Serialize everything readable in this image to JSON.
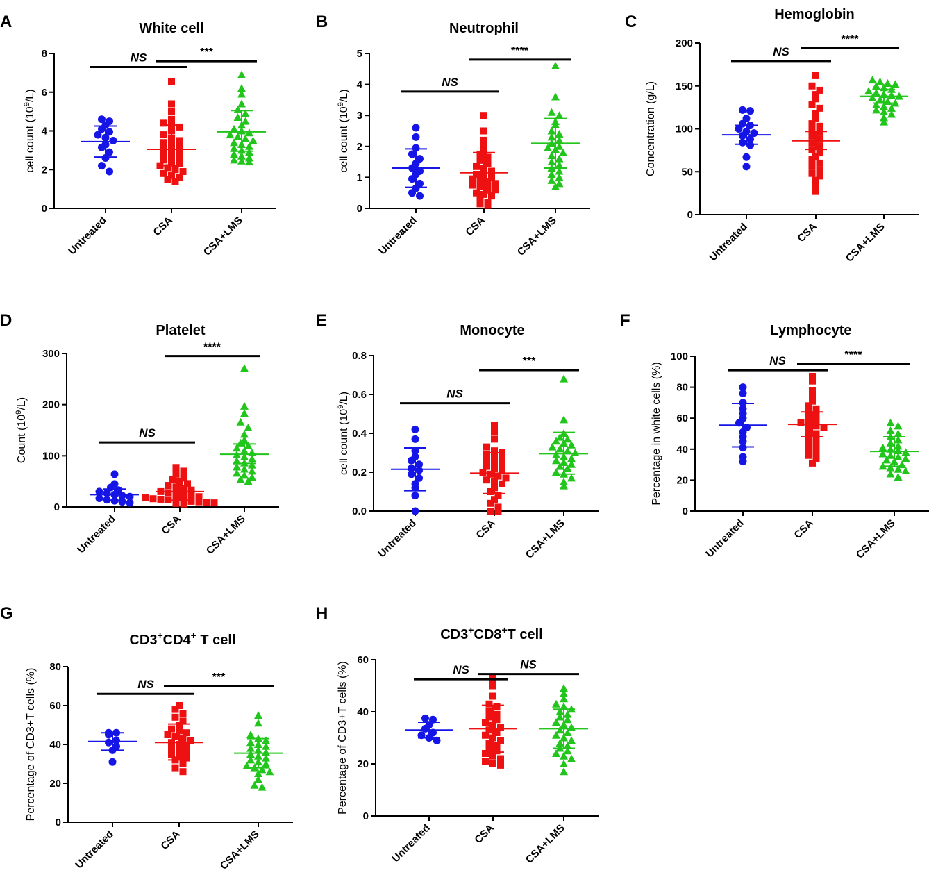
{
  "colors": {
    "untreated": "#1515e6",
    "csa": "#ee1111",
    "csa_lms": "#22c51c",
    "axis": "#000000"
  },
  "chart_data": [
    {
      "letter": "A",
      "type": "scatter",
      "title": "White cell",
      "ylabel": "cell count (10⁹/L)",
      "ylim": [
        0,
        8
      ],
      "yticks": [
        0,
        2,
        4,
        6,
        8
      ],
      "categories": [
        "Untreated",
        "CSA",
        "CSA+LMS"
      ],
      "series": [
        {
          "name": "Untreated",
          "marker": "circle",
          "mean": 3.45,
          "sd_low": 2.65,
          "sd_high": 4.25,
          "values": [
            4.6,
            4.5,
            4.3,
            4.1,
            3.95,
            3.8,
            3.65,
            3.5,
            3.3,
            3.15,
            2.9,
            2.6,
            2.2,
            1.9
          ]
        },
        {
          "name": "CSA",
          "marker": "square",
          "mean": 3.05,
          "sd_low": 2.2,
          "sd_high": 4.3,
          "values": [
            6.55,
            5.4,
            5.0,
            4.6,
            4.4,
            4.3,
            4.2,
            4.0,
            3.8,
            3.6,
            3.5,
            3.4,
            3.3,
            3.2,
            3.1,
            3.0,
            2.9,
            2.8,
            2.7,
            2.6,
            2.5,
            2.4,
            2.3,
            2.2,
            2.1,
            2.0,
            1.9,
            1.8,
            1.7,
            1.6,
            1.5,
            1.4
          ]
        },
        {
          "name": "CSA+LMS",
          "marker": "triangle",
          "mean": 3.95,
          "sd_low": 2.95,
          "sd_high": 5.05,
          "values": [
            6.9,
            6.2,
            5.9,
            5.4,
            5.1,
            4.9,
            4.7,
            4.5,
            4.3,
            4.1,
            4.0,
            3.9,
            3.8,
            3.7,
            3.6,
            3.5,
            3.4,
            3.3,
            3.2,
            3.1,
            3.0,
            2.9,
            2.8,
            2.7,
            2.6,
            2.5,
            2.45,
            2.4
          ]
        }
      ],
      "comparisons": [
        {
          "from": 0,
          "to": 1,
          "label": "NS",
          "y": 7.3
        },
        {
          "from": 1,
          "to": 2,
          "label": "***",
          "y": 7.6
        }
      ]
    },
    {
      "letter": "B",
      "type": "scatter",
      "title": "Neutrophil",
      "ylabel": "cell count (10⁹/L)",
      "ylim": [
        0,
        5
      ],
      "yticks": [
        0,
        1,
        2,
        3,
        4,
        5
      ],
      "categories": [
        "Untreated",
        "CSA",
        "CSA+LMS"
      ],
      "series": [
        {
          "name": "Untreated",
          "marker": "circle",
          "mean": 1.3,
          "sd_low": 0.68,
          "sd_high": 1.92,
          "values": [
            2.6,
            2.3,
            1.95,
            1.75,
            1.6,
            1.45,
            1.3,
            1.2,
            1.1,
            0.95,
            0.8,
            0.65,
            0.5,
            0.4
          ]
        },
        {
          "name": "CSA",
          "marker": "square",
          "mean": 1.15,
          "sd_low": 0.5,
          "sd_high": 1.8,
          "values": [
            3.0,
            2.5,
            2.2,
            2.0,
            1.85,
            1.75,
            1.65,
            1.55,
            1.45,
            1.35,
            1.3,
            1.2,
            1.1,
            1.05,
            1.0,
            0.95,
            0.9,
            0.85,
            0.8,
            0.75,
            0.7,
            0.65,
            0.6,
            0.5,
            0.45,
            0.4,
            0.3,
            0.2,
            0.15,
            0.1
          ]
        },
        {
          "name": "CSA+LMS",
          "marker": "triangle",
          "mean": 2.1,
          "sd_low": 1.3,
          "sd_high": 2.9,
          "values": [
            4.6,
            3.6,
            3.1,
            3.0,
            2.8,
            2.7,
            2.5,
            2.4,
            2.3,
            2.2,
            2.1,
            2.0,
            1.95,
            1.9,
            1.8,
            1.7,
            1.6,
            1.5,
            1.4,
            1.3,
            1.2,
            1.1,
            1.0,
            0.9,
            0.8,
            0.7
          ]
        }
      ],
      "comparisons": [
        {
          "from": 0,
          "to": 1,
          "label": "NS",
          "y": 3.77
        },
        {
          "from": 1,
          "to": 2,
          "label": "****",
          "y": 4.8
        }
      ]
    },
    {
      "letter": "C",
      "type": "scatter",
      "title": "Hemoglobin",
      "ylabel": "Concentration (g/L)",
      "ylim": [
        0,
        200
      ],
      "yticks": [
        0,
        50,
        100,
        150,
        200
      ],
      "categories": [
        "Untreated",
        "CSA",
        "CSA+LMS"
      ],
      "series": [
        {
          "name": "Untreated",
          "marker": "circle",
          "mean": 93,
          "sd_low": 82,
          "sd_high": 104,
          "values": [
            122,
            121,
            112,
            106,
            104,
            100,
            97,
            95,
            92,
            88,
            84,
            81,
            67,
            56
          ]
        },
        {
          "name": "CSA",
          "marker": "square",
          "mean": 86,
          "sd_low": 76,
          "sd_high": 97,
          "values": [
            162,
            150,
            145,
            140,
            135,
            128,
            124,
            118,
            112,
            106,
            103,
            100,
            96,
            92,
            88,
            84,
            80,
            76,
            72,
            68,
            64,
            60,
            56,
            52,
            48,
            45,
            40,
            34,
            27
          ]
        },
        {
          "name": "CSA+LMS",
          "marker": "triangle",
          "mean": 138,
          "sd_low": 130,
          "sd_high": 146,
          "values": [
            157,
            155,
            153,
            152,
            150,
            148,
            146,
            144,
            142,
            140,
            139,
            138,
            136,
            134,
            132,
            130,
            128,
            126,
            124,
            122,
            120,
            117,
            113,
            108
          ]
        }
      ],
      "comparisons": [
        {
          "from": 0,
          "to": 1,
          "label": "NS",
          "y": 179
        },
        {
          "from": 1,
          "to": 2,
          "label": "****",
          "y": 194
        }
      ]
    },
    {
      "letter": "D",
      "type": "scatter",
      "title": "Platelet",
      "ylabel": "Count (10⁹/L)",
      "ylim": [
        0,
        300
      ],
      "yticks": [
        0,
        100,
        200,
        300
      ],
      "categories": [
        "Untreated",
        "CSA",
        "CSA+LMS"
      ],
      "series": [
        {
          "name": "Untreated",
          "marker": "circle",
          "mean": 24,
          "sd_low": 13,
          "sd_high": 35,
          "values": [
            64,
            45,
            38,
            33,
            30,
            27,
            24,
            22,
            20,
            17,
            14,
            12,
            10,
            8
          ]
        },
        {
          "name": "CSA",
          "marker": "square",
          "mean": 30,
          "sd_low": 13,
          "sd_high": 51,
          "values": [
            77,
            70,
            64,
            58,
            53,
            49,
            45,
            42,
            39,
            36,
            33,
            30,
            28,
            26,
            24,
            22,
            20,
            18,
            16,
            15,
            14,
            13,
            12,
            11,
            10,
            9,
            8,
            7,
            6
          ]
        },
        {
          "name": "CSA+LMS",
          "marker": "triangle",
          "mean": 103,
          "sd_low": 85,
          "sd_high": 123,
          "values": [
            271,
            197,
            183,
            166,
            155,
            142,
            131,
            125,
            120,
            115,
            110,
            106,
            102,
            98,
            94,
            90,
            86,
            82,
            78,
            74,
            70,
            66,
            62,
            58,
            54,
            50
          ]
        }
      ],
      "comparisons": [
        {
          "from": 0,
          "to": 1,
          "label": "NS",
          "y": 126
        },
        {
          "from": 1,
          "to": 2,
          "label": "****",
          "y": 295
        }
      ]
    },
    {
      "letter": "E",
      "type": "scatter",
      "title": "Monocyte",
      "ylabel": "cell count (10⁹/L)",
      "ylim": [
        0,
        0.8
      ],
      "yticks": [
        0.0,
        0.2,
        0.4,
        0.6,
        0.8
      ],
      "categories": [
        "Untreated",
        "CSA",
        "CSA+LMS"
      ],
      "series": [
        {
          "name": "Untreated",
          "marker": "circle",
          "mean": 0.215,
          "sd_low": 0.105,
          "sd_high": 0.325,
          "values": [
            0.42,
            0.37,
            0.31,
            0.28,
            0.26,
            0.24,
            0.22,
            0.21,
            0.19,
            0.17,
            0.14,
            0.12,
            0.08,
            0.0
          ]
        },
        {
          "name": "CSA",
          "marker": "square",
          "mean": 0.195,
          "sd_low": 0.09,
          "sd_high": 0.3,
          "values": [
            0.44,
            0.41,
            0.37,
            0.33,
            0.31,
            0.3,
            0.29,
            0.28,
            0.27,
            0.26,
            0.25,
            0.24,
            0.23,
            0.22,
            0.21,
            0.2,
            0.19,
            0.18,
            0.17,
            0.16,
            0.15,
            0.14,
            0.12,
            0.1,
            0.08,
            0.06,
            0.04,
            0.02,
            0.0,
            0.0
          ]
        },
        {
          "name": "CSA+LMS",
          "marker": "triangle",
          "mean": 0.295,
          "sd_low": 0.19,
          "sd_high": 0.405,
          "values": [
            0.68,
            0.47,
            0.4,
            0.38,
            0.37,
            0.36,
            0.35,
            0.34,
            0.33,
            0.32,
            0.31,
            0.3,
            0.29,
            0.28,
            0.27,
            0.26,
            0.25,
            0.24,
            0.23,
            0.22,
            0.2,
            0.19,
            0.17,
            0.15,
            0.13
          ]
        }
      ],
      "comparisons": [
        {
          "from": 0,
          "to": 1,
          "label": "NS",
          "y": 0.555
        },
        {
          "from": 1,
          "to": 2,
          "label": "***",
          "y": 0.725
        }
      ]
    },
    {
      "letter": "F",
      "type": "scatter",
      "title": "Lymphocyte",
      "ylabel": "Percentage in white cells (%)",
      "ylim": [
        0,
        100
      ],
      "yticks": [
        0,
        20,
        40,
        60,
        80,
        100
      ],
      "categories": [
        "Untreated",
        "CSA",
        "CSA+LMS"
      ],
      "series": [
        {
          "name": "Untreated",
          "marker": "circle",
          "mean": 55.5,
          "sd_low": 41.5,
          "sd_high": 69.5,
          "values": [
            80,
            76,
            70,
            66,
            63,
            60,
            57,
            54,
            51,
            48,
            45,
            41,
            35,
            32
          ]
        },
        {
          "name": "CSA",
          "marker": "square",
          "mean": 56,
          "sd_low": 48,
          "sd_high": 64,
          "values": [
            87,
            84,
            78,
            74,
            71,
            68,
            66,
            64,
            62,
            60,
            58,
            57,
            56,
            55,
            54,
            52,
            50,
            48,
            46,
            44,
            42,
            40,
            38,
            36,
            34,
            31
          ]
        },
        {
          "name": "CSA+LMS",
          "marker": "triangle",
          "mean": 38.5,
          "sd_low": 29,
          "sd_high": 48,
          "values": [
            57,
            55,
            52,
            50,
            48,
            46,
            44,
            42,
            41,
            40,
            39,
            38,
            37,
            36,
            35,
            34,
            33,
            32,
            30,
            29,
            28,
            27,
            26,
            24,
            22
          ]
        }
      ],
      "comparisons": [
        {
          "from": 0,
          "to": 1,
          "label": "NS",
          "y": 91
        },
        {
          "from": 1,
          "to": 2,
          "label": "****",
          "y": 95
        }
      ]
    },
    {
      "letter": "G",
      "type": "scatter",
      "title": "CD3⁺CD4⁺ T cell",
      "ylabel": "Percentage of CD3+T cells (%)",
      "ylim": [
        0,
        80
      ],
      "yticks": [
        0,
        20,
        40,
        60,
        80
      ],
      "categories": [
        "Untreated",
        "CSA",
        "CSA+LMS"
      ],
      "series": [
        {
          "name": "Untreated",
          "marker": "circle",
          "mean": 41.5,
          "sd_low": 37,
          "sd_high": 46,
          "values": [
            46,
            46,
            45,
            42,
            41,
            39,
            37,
            31
          ]
        },
        {
          "name": "CSA",
          "marker": "square",
          "mean": 41,
          "sd_low": 32,
          "sd_high": 50.5,
          "values": [
            60,
            58,
            56,
            54,
            52,
            50,
            48,
            47,
            46,
            45,
            44,
            43,
            42,
            41,
            40,
            39,
            38,
            37,
            36,
            35,
            34,
            33,
            32,
            30,
            28,
            26
          ]
        },
        {
          "name": "CSA+LMS",
          "marker": "triangle",
          "mean": 35.5,
          "sd_low": 28,
          "sd_high": 43,
          "values": [
            55,
            51,
            45,
            43,
            42,
            41,
            40,
            39,
            38,
            37,
            36,
            35,
            34,
            33,
            32,
            31,
            30,
            29,
            28,
            27,
            26,
            25,
            22,
            19,
            18
          ]
        }
      ],
      "comparisons": [
        {
          "from": 0,
          "to": 1,
          "label": "NS",
          "y": 66
        },
        {
          "from": 1,
          "to": 2,
          "label": "***",
          "y": 70
        }
      ]
    },
    {
      "letter": "H",
      "type": "scatter",
      "title": "CD3⁺CD8⁺T cell",
      "ylabel": "Percentage of CD3+T cells (%)",
      "ylim": [
        0,
        60
      ],
      "yticks": [
        0,
        20,
        40,
        60
      ],
      "categories": [
        "Untreated",
        "CSA",
        "CSA+LMS"
      ],
      "series": [
        {
          "name": "Untreated",
          "marker": "circle",
          "mean": 33,
          "sd_low": 30,
          "sd_high": 36,
          "values": [
            37.5,
            37,
            35,
            33.5,
            32,
            31,
            30,
            29
          ]
        },
        {
          "name": "CSA",
          "marker": "square",
          "mean": 33.5,
          "sd_low": 24.5,
          "sd_high": 42.5,
          "values": [
            53,
            52,
            50,
            46,
            43,
            42,
            40,
            39,
            38,
            37,
            36,
            35,
            34,
            33,
            32,
            31,
            30,
            29,
            28,
            27,
            26,
            25,
            24,
            23,
            22,
            21,
            20,
            19.5
          ]
        },
        {
          "name": "CSA+LMS",
          "marker": "triangle",
          "mean": 33.5,
          "sd_low": 26,
          "sd_high": 41,
          "values": [
            49,
            47,
            45,
            43,
            42,
            41,
            40,
            39,
            38,
            37,
            36,
            35,
            34,
            33,
            32,
            31,
            30,
            29,
            28,
            27,
            26,
            25,
            24,
            23,
            22,
            20,
            17
          ]
        }
      ],
      "comparisons": [
        {
          "from": 0,
          "to": 1,
          "label": "NS",
          "y": 52.5
        },
        {
          "from": 1,
          "to": 2,
          "label": "NS",
          "y": 54.5
        }
      ]
    }
  ]
}
